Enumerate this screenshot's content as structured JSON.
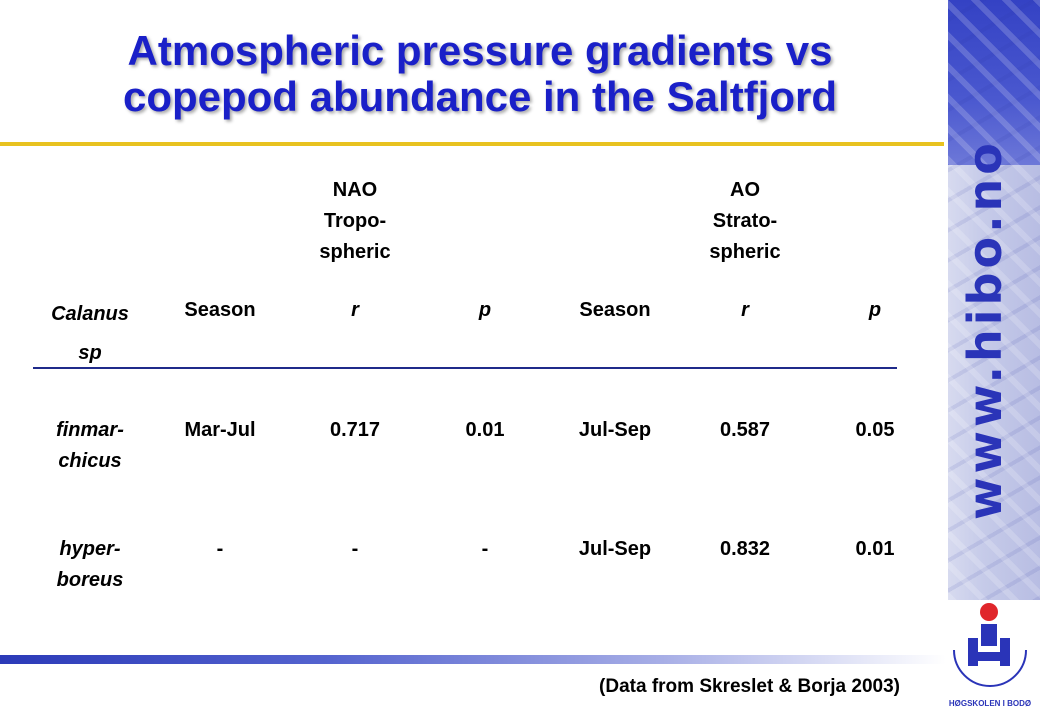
{
  "title": {
    "line1": "Atmospheric pressure gradients vs",
    "line2": "copepod abundance in the Saltfjord"
  },
  "group_headers": {
    "nao": "NAO\nTropo-\nspheric",
    "ao": "AO\nStrato-\nspheric"
  },
  "columns": {
    "species": "Calanus\nsp",
    "season1": "Season",
    "r1": "r",
    "p1": "p",
    "season2": "Season",
    "r2": "r",
    "p2": "p"
  },
  "rows": [
    {
      "species": "finmar-\nchicus",
      "season1": "Mar-Jul",
      "r1": "0.717",
      "p1": "0.01",
      "season2": "Jul-Sep",
      "r2": "0.587",
      "p2": "0.05"
    },
    {
      "species": "hyper-\nboreus",
      "season1": "-",
      "r1": "-",
      "p1": "-",
      "season2": "Jul-Sep",
      "r2": "0.832",
      "p2": "0.01"
    }
  ],
  "source": "(Data from Skreslet & Borja 2003)",
  "sidebar": {
    "url": "www.hibo.no",
    "logo_text": "HØGSKOLEN I BODØ"
  },
  "colors": {
    "title": "#1a20c8",
    "accent_rule": "#e8c21f",
    "brand_blue": "#2a34b8",
    "logo_red": "#e0262b"
  }
}
